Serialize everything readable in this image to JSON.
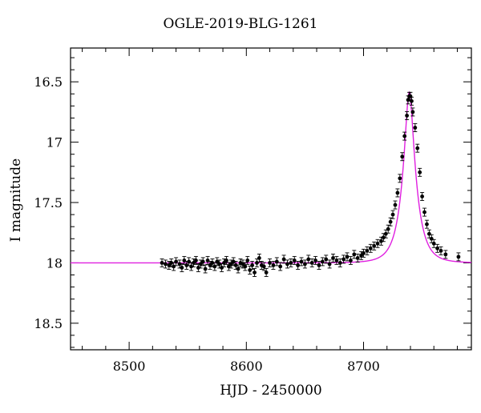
{
  "chart_data": {
    "type": "scatter",
    "title": "OGLE-2019-BLG-1261",
    "xlabel": "HJD - 2450000",
    "ylabel": "I magnitude",
    "xlim": [
      8450,
      8792
    ],
    "ylim": [
      18.72,
      16.22
    ],
    "y_inverted": true,
    "grid": false,
    "x_ticks": [
      8500,
      8600,
      8700
    ],
    "y_ticks": [
      16.5,
      17,
      17.5,
      18,
      18.5
    ],
    "x_tick_labels": [
      "8500",
      "8600",
      "8700"
    ],
    "y_tick_labels": [
      "16.5",
      "17",
      "17.5",
      "18",
      "18.5"
    ],
    "colors": {
      "data": "#000000",
      "model": "#e020e0",
      "axes": "#000000"
    },
    "model": {
      "type": "paczynski",
      "baseline_mag": 18.0,
      "t0": 8739.0,
      "u0": 0.28,
      "tE": 11.5,
      "description_samples_x": [
        8450,
        8500,
        8600,
        8650,
        8700,
        8720,
        8730,
        8735,
        8739,
        8743,
        8750,
        8760,
        8780,
        8792
      ]
    },
    "series": [
      {
        "x": [
          8528,
          8531,
          8534,
          8536,
          8538,
          8540,
          8543,
          8545,
          8547,
          8549,
          8551,
          8553,
          8555,
          8557,
          8559,
          8561,
          8563,
          8565,
          8567,
          8569,
          8571,
          8573,
          8575,
          8577,
          8579,
          8581,
          8583,
          8585,
          8587,
          8589,
          8591,
          8593,
          8595,
          8597,
          8599,
          8601,
          8603,
          8605,
          8607,
          8609,
          8611,
          8613,
          8615,
          8617,
          8620,
          8623,
          8626,
          8629,
          8632,
          8635,
          8638,
          8641,
          8644,
          8647,
          8650,
          8653,
          8656,
          8659,
          8662,
          8665,
          8668,
          8671,
          8674,
          8677,
          8680,
          8683,
          8686,
          8689,
          8692,
          8695,
          8698,
          8700,
          8703,
          8706,
          8709,
          8712,
          8715,
          8717,
          8719,
          8721,
          8723,
          8725,
          8727,
          8729,
          8731,
          8733,
          8735,
          8737,
          8738,
          8739,
          8740,
          8741,
          8742,
          8744,
          8746,
          8748,
          8750,
          8752,
          8754,
          8756,
          8758,
          8760,
          8763,
          8766,
          8770,
          8781
        ],
        "y": [
          18.0,
          18.01,
          18.02,
          18.0,
          18.03,
          17.99,
          18.01,
          18.04,
          17.98,
          18.02,
          17.99,
          18.03,
          18.0,
          17.98,
          18.04,
          18.01,
          17.99,
          18.05,
          17.98,
          18.02,
          18.0,
          18.03,
          17.99,
          18.01,
          18.04,
          18.0,
          17.98,
          18.03,
          18.01,
          17.99,
          18.02,
          18.05,
          18.0,
          18.01,
          18.03,
          17.98,
          18.06,
          18.02,
          18.08,
          18.0,
          17.96,
          18.02,
          18.03,
          18.08,
          18.0,
          18.02,
          17.99,
          18.03,
          17.97,
          18.01,
          18.0,
          17.98,
          18.02,
          17.99,
          18.01,
          17.97,
          18.0,
          17.98,
          18.02,
          17.99,
          17.97,
          18.01,
          17.96,
          17.98,
          18.0,
          17.97,
          17.95,
          17.98,
          17.93,
          17.96,
          17.94,
          17.92,
          17.9,
          17.88,
          17.86,
          17.84,
          17.82,
          17.79,
          17.76,
          17.72,
          17.66,
          17.6,
          17.52,
          17.42,
          17.3,
          17.12,
          16.95,
          16.78,
          16.65,
          16.62,
          16.62,
          16.66,
          16.75,
          16.88,
          17.05,
          17.25,
          17.45,
          17.58,
          17.68,
          17.76,
          17.8,
          17.84,
          17.88,
          17.9,
          17.93,
          17.95
        ]
      }
    ]
  }
}
